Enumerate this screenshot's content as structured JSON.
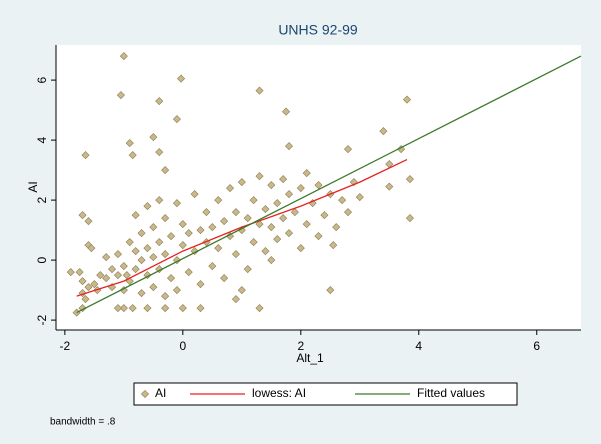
{
  "chart_data": {
    "type": "scatter",
    "title": "UNHS 92-99",
    "x_label": "Alt_1",
    "y_label": "AI",
    "note": "bandwidth = .8",
    "xlim": [
      -2.15,
      6.75
    ],
    "ylim": [
      -2.33,
      7.17
    ],
    "xticks": [
      -2,
      0,
      2,
      4,
      6
    ],
    "yticks": [
      -2,
      0,
      2,
      4,
      6
    ],
    "series": [
      {
        "name": "AI",
        "type": "scatter",
        "color": "#c9b98a",
        "x": [
          -1.0,
          -1.05,
          -0.03,
          -0.4,
          1.3,
          1.75,
          3.8,
          -0.1,
          -0.5,
          -0.9,
          -0.4,
          -0.85,
          -1.65,
          1.8,
          3.4,
          3.7,
          2.8,
          -0.3,
          -1.7,
          -1.6,
          -1.6,
          -1.55,
          3.85,
          3.85,
          3.5,
          3.5,
          2.55,
          1.5,
          1.3,
          -0.85,
          -1.0,
          -1.1,
          -0.6,
          -0.3,
          0.0,
          0.3,
          0.9,
          2.5,
          -1.8,
          -1.7,
          -1.9,
          -1.75,
          -1.7,
          -1.6,
          -1.7,
          -1.65,
          1.0,
          -1.3,
          -1.2,
          -1.2,
          -1.1,
          -1.1,
          -1.0,
          -1.0,
          -0.9,
          -0.9,
          -0.8,
          -0.8,
          -0.8,
          -0.7,
          -0.7,
          -0.7,
          -0.6,
          -0.6,
          -0.6,
          -0.5,
          -0.5,
          -0.5,
          -0.4,
          -0.4,
          -0.4,
          -0.3,
          -0.3,
          -0.3,
          -0.2,
          -0.2,
          -0.1,
          -0.1,
          -0.1,
          0.0,
          0.0,
          0.1,
          0.1,
          0.2,
          0.2,
          0.3,
          0.3,
          0.4,
          0.4,
          0.5,
          0.5,
          0.6,
          0.6,
          0.7,
          0.7,
          0.8,
          0.8,
          0.9,
          0.9,
          1.0,
          1.0,
          1.1,
          1.1,
          1.2,
          1.2,
          1.3,
          1.3,
          1.4,
          1.4,
          1.5,
          1.5,
          1.6,
          1.6,
          1.7,
          1.7,
          1.8,
          1.8,
          1.9,
          2.0,
          2.0,
          2.1,
          2.1,
          2.2,
          2.3,
          2.3,
          2.4,
          2.5,
          2.6,
          2.7,
          2.8,
          2.9,
          3.0,
          -1.5,
          -1.4,
          -1.45,
          -1.3,
          -0.95
        ],
        "values": [
          6.8,
          5.5,
          6.05,
          5.3,
          5.65,
          4.95,
          5.35,
          4.7,
          4.1,
          3.9,
          3.6,
          3.5,
          3.5,
          3.8,
          4.3,
          3.7,
          3.7,
          3.0,
          1.5,
          1.3,
          0.5,
          0.4,
          2.7,
          1.4,
          2.45,
          3.2,
          0.5,
          0.0,
          -1.6,
          -1.6,
          -1.6,
          -1.6,
          -1.6,
          -1.6,
          -1.6,
          -1.6,
          -1.3,
          -1.0,
          -1.75,
          -1.6,
          -0.4,
          -0.4,
          -0.7,
          -0.9,
          -1.1,
          -1.3,
          -1.0,
          -0.6,
          -0.9,
          -0.3,
          -0.5,
          0.2,
          -1.0,
          -0.2,
          0.6,
          -0.7,
          1.5,
          -0.3,
          0.3,
          -1.1,
          0.0,
          0.9,
          -0.5,
          0.4,
          1.8,
          -0.9,
          0.1,
          1.1,
          -0.3,
          0.6,
          2.0,
          -1.2,
          0.2,
          1.4,
          -0.6,
          0.8,
          0.0,
          1.9,
          -1.0,
          0.5,
          1.2,
          -0.4,
          0.9,
          0.3,
          2.2,
          -0.8,
          1.0,
          0.6,
          1.6,
          -0.2,
          1.1,
          0.4,
          2.0,
          -0.6,
          1.3,
          0.8,
          2.4,
          0.2,
          1.6,
          1.0,
          2.6,
          -0.3,
          1.4,
          0.6,
          2.0,
          1.2,
          2.8,
          0.3,
          1.7,
          1.1,
          2.5,
          0.7,
          1.9,
          1.4,
          2.7,
          0.9,
          2.2,
          1.6,
          0.4,
          2.4,
          1.2,
          2.9,
          1.9,
          0.8,
          2.5,
          1.5,
          2.2,
          1.1,
          2.0,
          1.6,
          2.6,
          2.1,
          -0.8,
          -0.5,
          -1.0,
          0.1,
          -0.5
        ]
      },
      {
        "name": "lowess: AI",
        "type": "line",
        "color": "#e8231f",
        "x": [
          -1.8,
          -1.0,
          0.0,
          1.0,
          2.0,
          3.0,
          3.8
        ],
        "values": [
          -1.2,
          -0.7,
          0.3,
          1.1,
          1.8,
          2.6,
          3.35
        ]
      },
      {
        "name": "Fitted values",
        "type": "line",
        "color": "#3e7a2b",
        "x": [
          -1.8,
          6.75
        ],
        "values": [
          -1.75,
          6.8
        ]
      }
    ]
  }
}
